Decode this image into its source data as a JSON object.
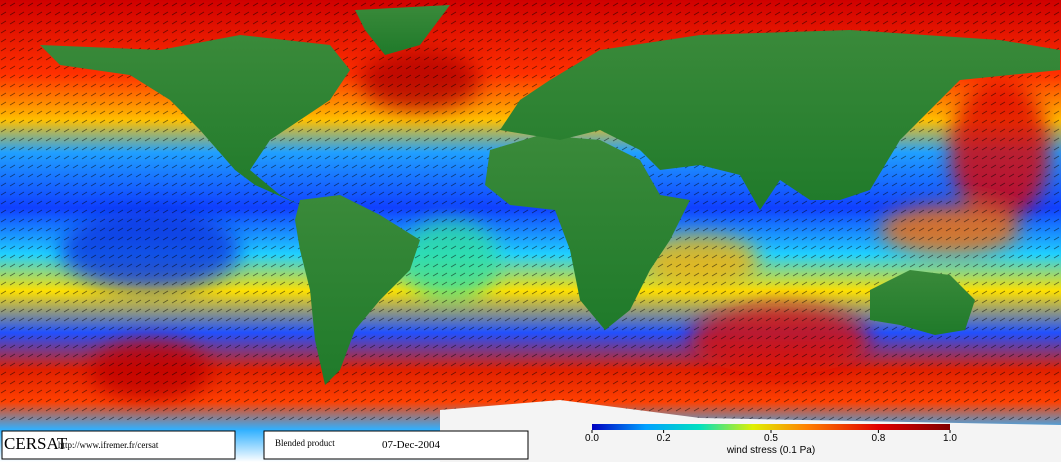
{
  "footer": {
    "logo": "CERSAT",
    "url": "http://www.ifremer.fr/cersat",
    "product": "Blended product",
    "date": "07-Dec-2004"
  },
  "colorbar": {
    "label": "wind stress (0.1 Pa)",
    "range": [
      0,
      1
    ],
    "ticks": [
      {
        "value": 0,
        "label": "0.0"
      },
      0.2,
      0.5,
      0.8,
      {
        "value": 1,
        "label": "1.0"
      }
    ]
  }
}
